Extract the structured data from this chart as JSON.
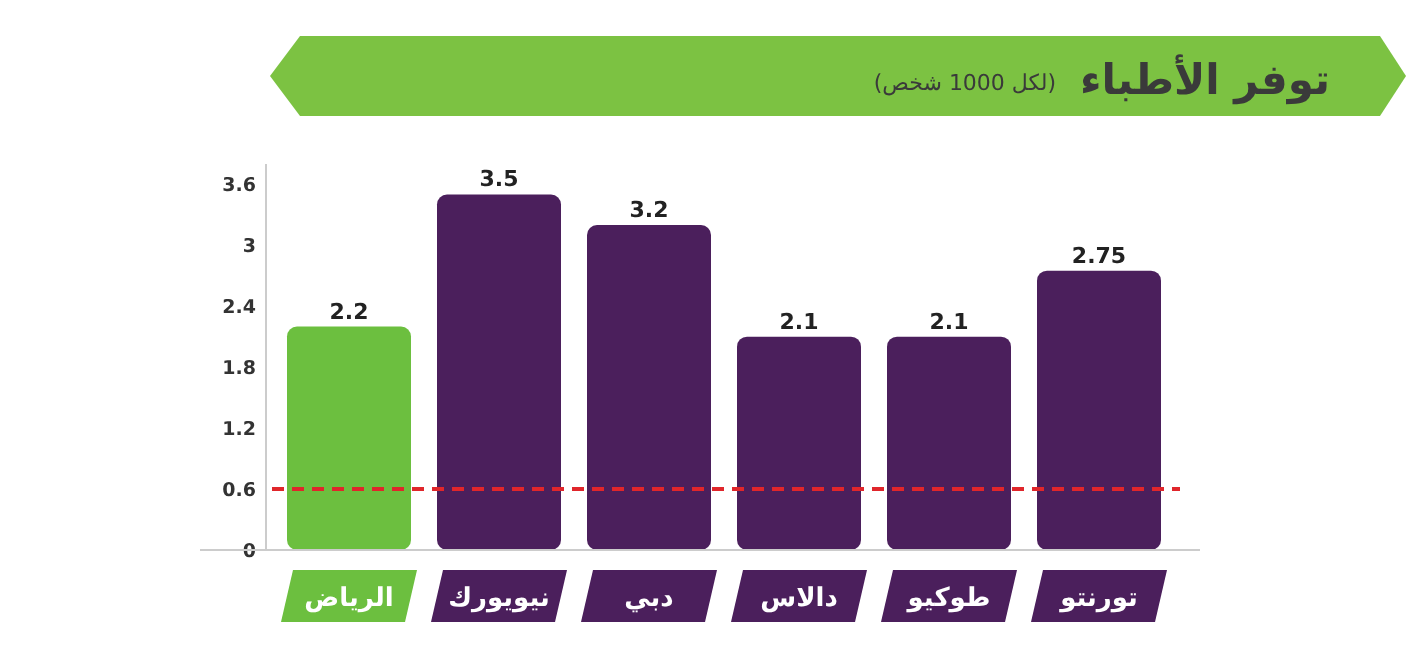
{
  "chart_data": {
    "type": "bar",
    "title": "توفر الأطباء",
    "subtitle": "(لكل 1000 شخص)",
    "categories": [
      "الرياض",
      "نيويورك",
      "دبي",
      "دالاس",
      "طوكيو",
      "تورنتو"
    ],
    "values": [
      2.2,
      3.5,
      3.2,
      2.1,
      2.1,
      2.75
    ],
    "colors": [
      "#6cbf3f",
      "#4b1f5c",
      "#4b1f5c",
      "#4b1f5c",
      "#4b1f5c",
      "#4b1f5c"
    ],
    "ylim": [
      0,
      3.8
    ],
    "yticks": [
      0,
      0.6,
      1.2,
      1.8,
      2.4,
      3,
      3.6
    ],
    "ref_lines": [
      {
        "axis": "y",
        "value": 0.6,
        "color": "#e0262b",
        "line_style": "dashed"
      }
    ],
    "data_labels": true
  }
}
